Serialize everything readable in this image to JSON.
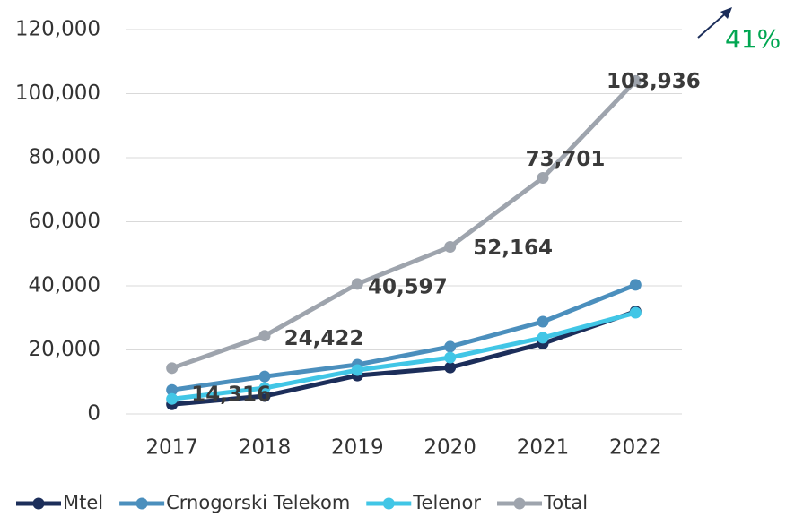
{
  "chart_data": {
    "type": "line",
    "categories": [
      "2017",
      "2018",
      "2019",
      "2020",
      "2021",
      "2022"
    ],
    "series": [
      {
        "name": "Mtel",
        "color": "#1c2e5a",
        "values": [
          3000,
          5600,
          12000,
          14500,
          22000,
          32000
        ]
      },
      {
        "name": "Crnogorski Telekom",
        "color": "#4b8fbd",
        "values": [
          7500,
          11700,
          15400,
          21000,
          28800,
          40300
        ]
      },
      {
        "name": "Telenor",
        "color": "#41c6e6",
        "values": [
          4700,
          8100,
          13700,
          17600,
          23800,
          31600
        ]
      },
      {
        "name": "Total",
        "color": "#9ea4ad",
        "values": [
          14316,
          24422,
          40597,
          52164,
          73701,
          103936
        ],
        "value_labels": [
          "14,316",
          "24,422",
          "40,597",
          "52,164",
          "73,701",
          "103,936"
        ]
      }
    ],
    "ylim": [
      0,
      120000
    ],
    "yticks": [
      0,
      {
        "value": 20000,
        "label": "20,000"
      },
      {
        "value": 40000,
        "label": "40,000"
      },
      {
        "value": 60000,
        "label": "60,000"
      },
      {
        "value": 80000,
        "label": "80,000"
      },
      {
        "value": 100000,
        "label": "100,000"
      },
      {
        "value": 120000,
        "label": "120,000"
      }
    ],
    "grid": true,
    "legend": "bottom",
    "annotation": "41%"
  }
}
